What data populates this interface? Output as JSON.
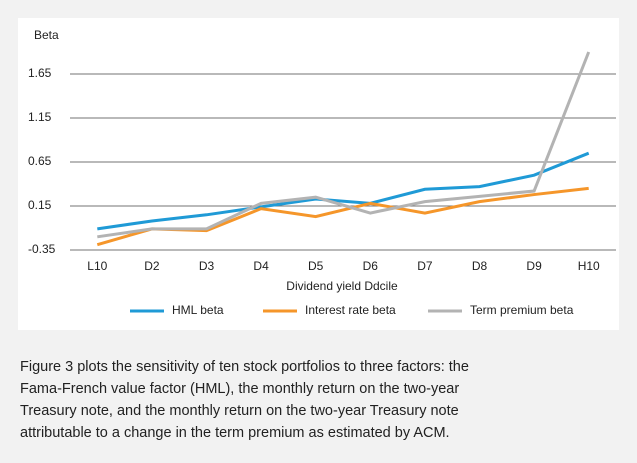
{
  "chart_data": {
    "type": "line",
    "y_label": "Beta",
    "x_label": "Dividend yield Ddcile",
    "categories": [
      "L10",
      "D2",
      "D3",
      "D4",
      "D5",
      "D6",
      "D7",
      "D8",
      "D9",
      "H10"
    ],
    "series": [
      {
        "name": "HML beta",
        "color": "#1f9ad6",
        "values": [
          -0.11,
          -0.02,
          0.05,
          0.14,
          0.23,
          0.18,
          0.34,
          0.37,
          0.5,
          0.75
        ]
      },
      {
        "name": "Interest rate beta",
        "color": "#f5962a",
        "values": [
          -0.29,
          -0.11,
          -0.13,
          0.12,
          0.03,
          0.18,
          0.07,
          0.2,
          0.28,
          0.35
        ]
      },
      {
        "name": "Term premium beta",
        "color": "#b3b3b3",
        "values": [
          -0.2,
          -0.11,
          -0.11,
          0.18,
          0.25,
          0.07,
          0.2,
          0.26,
          0.32,
          1.9
        ]
      }
    ],
    "ylim": [
      -0.35,
      1.9
    ],
    "yticks": [
      -0.35,
      0.15,
      0.65,
      1.15,
      1.65
    ],
    "grid": true,
    "legend": "bottom",
    "caption": [
      "Figure 3 plots the sensitivity of ten stock portfolios to three factors: the",
      "Fama-French value factor (HML), the monthly return on the two-year",
      "Treasury note, and the monthly return on the two-year Treasury note",
      "attributable to a change in the term premium as estimated by ACM."
    ]
  }
}
